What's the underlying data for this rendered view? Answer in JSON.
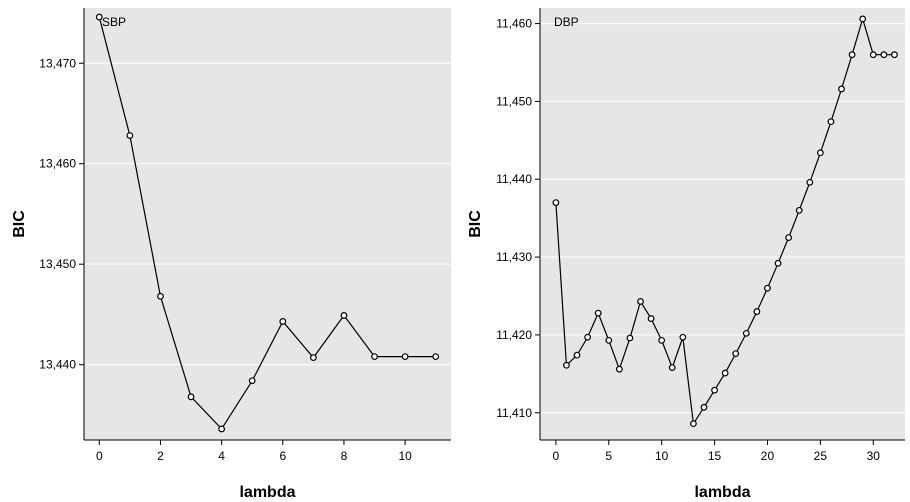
{
  "chart_data": [
    {
      "type": "line",
      "title": "SBP",
      "xlabel": "lambda",
      "ylabel": "BIC",
      "xlim": [
        -0.5,
        11.5
      ],
      "ylim": [
        13432.5,
        13475.5
      ],
      "xticks": [
        0,
        2,
        4,
        6,
        8,
        10
      ],
      "xtick_labels": [
        "0",
        "2",
        "4",
        "6",
        "8",
        "10"
      ],
      "yticks": [
        13440,
        13450,
        13460,
        13470
      ],
      "ytick_labels": [
        "13,440",
        "13,450",
        "13,460",
        "13,470"
      ],
      "grid": true,
      "x": [
        0,
        1,
        2,
        3,
        4,
        5,
        6,
        7,
        8,
        9,
        10,
        11
      ],
      "y": [
        13474.6,
        13462.8,
        13446.8,
        13436.8,
        13433.6,
        13438.4,
        13444.3,
        13440.7,
        13444.9,
        13440.8,
        13440.8,
        13440.8
      ]
    },
    {
      "type": "line",
      "title": "DBP",
      "xlabel": "lambda",
      "ylabel": "BIC",
      "xlim": [
        -1.5,
        33
      ],
      "ylim": [
        11406.5,
        11462
      ],
      "xticks": [
        0,
        5,
        10,
        15,
        20,
        25,
        30
      ],
      "xtick_labels": [
        "0",
        "5",
        "10",
        "15",
        "20",
        "25",
        "30"
      ],
      "yticks": [
        11410,
        11420,
        11430,
        11440,
        11450,
        11460
      ],
      "ytick_labels": [
        "11,410",
        "11,420",
        "11,430",
        "11,440",
        "11,450",
        "11,460"
      ],
      "grid": true,
      "x": [
        0,
        1,
        2,
        3,
        4,
        5,
        6,
        7,
        8,
        9,
        10,
        11,
        12,
        13,
        14,
        15,
        16,
        17,
        18,
        19,
        20,
        21,
        22,
        23,
        24,
        25,
        26,
        27,
        28,
        29,
        30,
        31,
        32
      ],
      "y": [
        11437.0,
        11416.1,
        11417.4,
        11419.7,
        11422.8,
        11419.3,
        11415.6,
        11419.6,
        11424.3,
        11422.1,
        11419.3,
        11415.8,
        11419.7,
        11408.6,
        11410.7,
        11412.9,
        11415.1,
        11417.6,
        11420.2,
        11423.0,
        11426.0,
        11429.2,
        11432.5,
        11436.0,
        11439.6,
        11443.4,
        11447.4,
        11451.6,
        11456.0,
        11460.6,
        11456.0,
        11456.0,
        11456.0
      ]
    }
  ]
}
